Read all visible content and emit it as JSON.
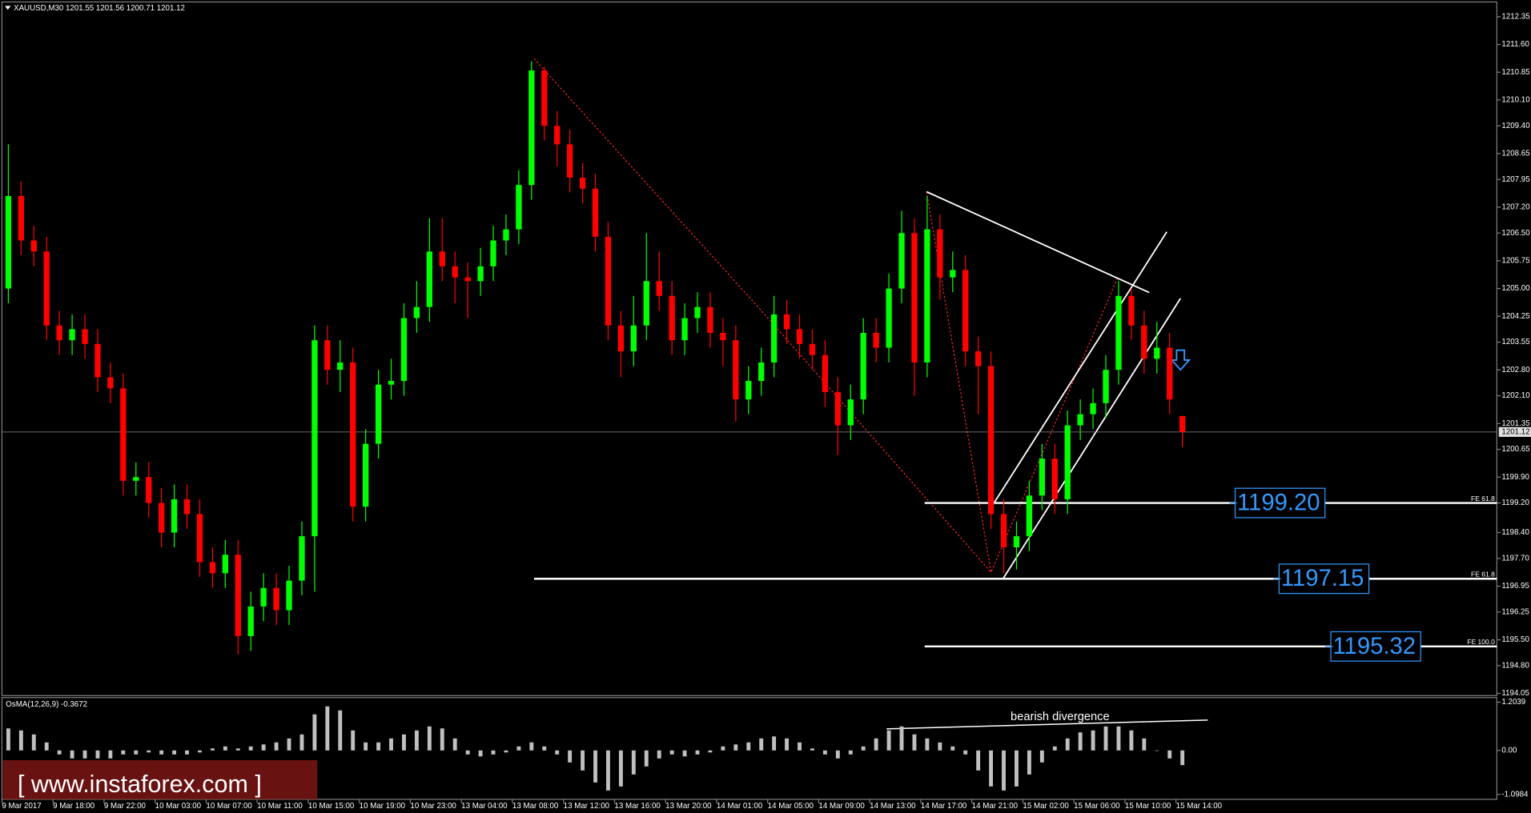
{
  "chart_data": [
    {
      "type": "candlestick",
      "title": "XAUUSD,M30 1201.55 1201.56 1200.71 1201.12",
      "categories": [
        "9 Mar 2017",
        null,
        null,
        null,
        "9 Mar 18:00",
        null,
        null,
        null,
        "9 Mar 22:00",
        null,
        null,
        null,
        "10 Mar 03:00",
        null,
        null,
        null,
        "10 Mar 07:00",
        null,
        null,
        null,
        "10 Mar 11:00",
        null,
        null,
        null,
        "10 Mar 15:00",
        null,
        null,
        null,
        "10 Mar 19:00",
        null,
        null,
        null,
        "10 Mar 23:00",
        null,
        null,
        null,
        "13 Mar 04:00",
        null,
        null,
        null,
        "13 Mar 08:00",
        null,
        null,
        null,
        "13 Mar 12:00",
        null,
        null,
        null,
        "13 Mar 16:00",
        null,
        null,
        null,
        "13 Mar 20:00",
        null,
        null,
        null,
        "14 Mar 01:00",
        null,
        null,
        null,
        "14 Mar 05:00",
        null,
        null,
        null,
        "14 Mar 09:00",
        null,
        null,
        null,
        "14 Mar 13:00",
        null,
        null,
        null,
        "14 Mar 17:00",
        null,
        null,
        null,
        "14 Mar 21:00",
        null,
        null,
        null,
        "15 Mar 02:00",
        null,
        null,
        null,
        "15 Mar 06:00",
        null,
        null,
        null,
        "15 Mar 10:00",
        null,
        null,
        null,
        "15 Mar 14:00"
      ],
      "open": [
        1205.0,
        1207.5,
        1206.3,
        1206.0,
        1204.0,
        1203.6,
        1203.9,
        1203.5,
        1202.6,
        1202.3,
        1199.8,
        1199.9,
        1199.2,
        1198.4,
        1199.3,
        1198.9,
        1197.6,
        1197.3,
        1197.8,
        1195.6,
        1196.4,
        1196.9,
        1196.3,
        1197.1,
        1198.3,
        1203.6,
        1202.8,
        1203.0,
        1199.1,
        1200.8,
        1202.4,
        1202.5,
        1204.2,
        1204.5,
        1206.0,
        1205.6,
        1205.3,
        1205.2,
        1205.6,
        1206.3,
        1206.6,
        1207.8,
        1210.9,
        1209.4,
        1208.9,
        1208.0,
        1207.7,
        1206.4,
        1204.0,
        1203.3,
        1204.0,
        1205.2,
        1204.8,
        1203.6,
        1204.2,
        1204.5,
        1203.8,
        1203.6,
        1202.0,
        1202.5,
        1203.0,
        1204.3,
        1203.9,
        1203.5,
        1203.2,
        1202.2,
        1201.3,
        1202.0,
        1203.8,
        1203.4,
        1205.0,
        1206.5,
        1203.0,
        1206.6,
        1205.3,
        1205.5,
        1203.3,
        1202.9,
        1198.9,
        1198.0,
        1198.3,
        1199.4,
        1200.4,
        1199.3,
        1201.3,
        1201.6,
        1201.9,
        1202.8,
        1204.8,
        1204.0,
        1203.1,
        1203.4,
        1201.55
      ],
      "high": [
        1208.9,
        1207.9,
        1206.7,
        1206.4,
        1204.4,
        1204.3,
        1204.3,
        1203.9,
        1203.0,
        1202.7,
        1200.3,
        1200.3,
        1199.6,
        1199.7,
        1199.7,
        1199.3,
        1198.0,
        1198.2,
        1198.2,
        1196.8,
        1197.3,
        1197.3,
        1197.5,
        1198.7,
        1204.0,
        1204.0,
        1203.6,
        1203.4,
        1201.2,
        1202.8,
        1203.1,
        1204.6,
        1205.2,
        1206.9,
        1206.9,
        1206.0,
        1205.7,
        1206.1,
        1206.7,
        1207.0,
        1208.2,
        1211.15,
        1211.0,
        1209.8,
        1209.3,
        1208.4,
        1208.1,
        1206.8,
        1204.4,
        1204.8,
        1206.5,
        1206.0,
        1205.2,
        1204.6,
        1204.9,
        1204.9,
        1204.2,
        1204.0,
        1202.9,
        1203.4,
        1204.8,
        1204.7,
        1204.3,
        1203.9,
        1203.6,
        1202.6,
        1202.4,
        1204.2,
        1204.2,
        1205.4,
        1207.1,
        1206.9,
        1207.5,
        1207.0,
        1206.0,
        1205.9,
        1203.7,
        1203.3,
        1199.3,
        1198.7,
        1199.8,
        1200.8,
        1200.8,
        1201.7,
        1202.0,
        1202.3,
        1203.2,
        1205.2,
        1205.0,
        1204.4,
        1204.1,
        1203.8,
        1201.56
      ],
      "low": [
        1204.6,
        1205.9,
        1205.6,
        1203.6,
        1203.2,
        1203.2,
        1203.1,
        1202.2,
        1201.9,
        1199.4,
        1199.4,
        1198.8,
        1198.0,
        1198.0,
        1198.5,
        1197.2,
        1196.9,
        1196.9,
        1195.1,
        1195.2,
        1196.0,
        1195.9,
        1195.9,
        1196.7,
        1196.8,
        1202.4,
        1202.2,
        1198.7,
        1198.7,
        1200.4,
        1202.0,
        1202.1,
        1203.8,
        1204.1,
        1205.2,
        1204.6,
        1204.2,
        1204.8,
        1205.2,
        1205.9,
        1206.2,
        1207.4,
        1209.0,
        1208.3,
        1207.6,
        1207.3,
        1206.0,
        1203.6,
        1202.6,
        1202.9,
        1203.6,
        1204.4,
        1203.2,
        1203.2,
        1203.8,
        1203.4,
        1202.9,
        1201.4,
        1201.6,
        1202.1,
        1202.6,
        1203.5,
        1203.1,
        1202.8,
        1201.8,
        1200.5,
        1200.9,
        1201.6,
        1203.0,
        1203.0,
        1204.6,
        1202.1,
        1202.6,
        1204.7,
        1204.9,
        1202.9,
        1201.6,
        1198.5,
        1197.3,
        1197.4,
        1197.9,
        1199.0,
        1198.9,
        1198.9,
        1200.9,
        1201.2,
        1201.5,
        1202.4,
        1203.6,
        1202.7,
        1202.7,
        1201.6,
        1200.71
      ],
      "close": [
        1207.5,
        1206.3,
        1206.0,
        1204.0,
        1203.6,
        1203.9,
        1203.5,
        1202.6,
        1202.3,
        1199.8,
        1199.9,
        1199.2,
        1198.4,
        1199.3,
        1198.9,
        1197.6,
        1197.3,
        1197.8,
        1195.6,
        1196.4,
        1196.9,
        1196.3,
        1197.1,
        1198.3,
        1203.6,
        1202.8,
        1203.0,
        1199.1,
        1200.8,
        1202.4,
        1202.5,
        1204.2,
        1204.5,
        1206.0,
        1205.6,
        1205.3,
        1205.2,
        1205.6,
        1206.3,
        1206.6,
        1207.8,
        1210.9,
        1209.4,
        1208.9,
        1208.0,
        1207.7,
        1206.4,
        1204.0,
        1203.3,
        1204.0,
        1205.2,
        1204.8,
        1203.6,
        1204.2,
        1204.5,
        1203.8,
        1203.6,
        1202.0,
        1202.5,
        1203.0,
        1204.3,
        1203.9,
        1203.5,
        1203.2,
        1202.2,
        1201.3,
        1202.0,
        1203.8,
        1203.4,
        1205.0,
        1206.5,
        1203.0,
        1206.6,
        1205.3,
        1205.5,
        1203.3,
        1202.9,
        1198.9,
        1198.0,
        1198.3,
        1199.4,
        1200.4,
        1199.3,
        1201.3,
        1201.6,
        1201.9,
        1202.8,
        1204.8,
        1204.0,
        1203.1,
        1203.4,
        1202.0,
        1201.12
      ],
      "up_color": "#00ff00",
      "down_color": "#ff0000",
      "ylim": [
        1193.99,
        1212.75
      ],
      "yticks": [
        1212.35,
        {
          "value": 1211.6,
          "label": "1211.60"
        },
        1210.85,
        {
          "value": 1210.1,
          "label": "1210.10"
        },
        {
          "value": 1209.4,
          "label": "1209.40"
        },
        1208.65,
        1207.95,
        {
          "value": 1207.2,
          "label": "1207.20"
        },
        {
          "value": 1206.5,
          "label": "1206.50"
        },
        1205.75,
        {
          "value": 1205,
          "label": "1205.00"
        },
        1204.25,
        1203.55,
        {
          "value": 1202.8,
          "label": "1202.80"
        },
        {
          "value": 1202.1,
          "label": "1202.10"
        },
        1201.35,
        1200.65,
        {
          "value": 1199.9,
          "label": "1199.90"
        },
        {
          "value": 1199.2,
          "label": "1199.20"
        },
        {
          "value": 1198.4,
          "label": "1198.40"
        },
        {
          "value": 1197.7,
          "label": "1197.70"
        },
        1196.95,
        1196.25,
        {
          "value": 1195.5,
          "label": "1195.50"
        },
        {
          "value": 1194.8,
          "label": "1194.80"
        },
        1194.05
      ],
      "last_price": 1201.12,
      "grid": false,
      "levels": [
        {
          "value": 1199.2,
          "label": "1199.20",
          "name": "FE 61.8"
        },
        {
          "value": 1197.15,
          "label": "1197.15",
          "name": "FE 61.8"
        },
        {
          "value": 1195.32,
          "label": "1195.32",
          "name": "FE 100.0"
        }
      ]
    },
    {
      "type": "bar",
      "title": "OsMA(12,26,9) -0.3672",
      "values": [
        0.55,
        0.5,
        0.4,
        0.2,
        -0.1,
        -0.2,
        -0.2,
        -0.2,
        -0.2,
        -0.1,
        -0.1,
        -0.05,
        -0.1,
        -0.1,
        -0.1,
        -0.05,
        0.05,
        0.1,
        0.05,
        0.1,
        0.15,
        0.2,
        0.3,
        0.4,
        0.9,
        1.1,
        1.0,
        0.5,
        0.2,
        0.2,
        0.3,
        0.4,
        0.5,
        0.6,
        0.55,
        0.3,
        -0.1,
        -0.15,
        -0.1,
        -0.05,
        0.1,
        0.2,
        0.1,
        -0.1,
        -0.3,
        -0.5,
        -0.8,
        -1.0,
        -0.9,
        -0.6,
        -0.4,
        -0.2,
        -0.1,
        -0.15,
        -0.1,
        -0.05,
        0.1,
        0.15,
        0.2,
        0.3,
        0.35,
        0.3,
        0.2,
        0.05,
        -0.1,
        -0.2,
        -0.1,
        0.1,
        0.3,
        0.5,
        0.6,
        0.4,
        0.3,
        0.2,
        0.1,
        -0.1,
        -0.5,
        -0.9,
        -1.0,
        -0.9,
        -0.6,
        -0.3,
        0.1,
        0.3,
        0.45,
        0.5,
        0.6,
        0.6,
        0.5,
        0.3,
        0.0,
        -0.2,
        -0.3672
      ],
      "color": "#c0c0c0",
      "ylim": [
        -1.22,
        1.32
      ],
      "yticks": [
        1.2039,
        {
          "value": 0,
          "label": "0.00"
        },
        -1.0984
      ],
      "annotation": "bearish divergence"
    }
  ],
  "watermark": "[ www.instaforex.com ]"
}
